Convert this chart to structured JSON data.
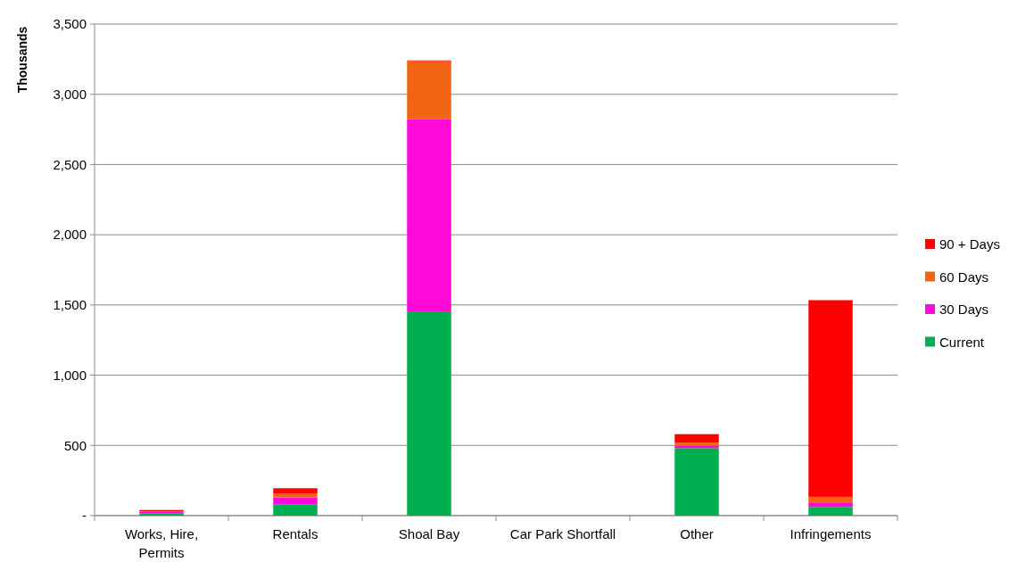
{
  "chart_data": {
    "type": "bar",
    "stacked": true,
    "ylabel": "Thousands",
    "categories": [
      "Works, Hire, Permits",
      "Rentals",
      "Shoal Bay",
      "Car Park Shortfall",
      "Other",
      "Infringements"
    ],
    "series": [
      {
        "name": "Current",
        "color": "#00b050",
        "values": [
          18,
          78,
          1455,
          0,
          481,
          62
        ]
      },
      {
        "name": "30 Days",
        "color": "#ff0ad8",
        "values": [
          8,
          51,
          1368,
          0,
          19,
          32
        ]
      },
      {
        "name": "60 Days",
        "color": "#f06414",
        "values": [
          4,
          30,
          413,
          0,
          21,
          40
        ]
      },
      {
        "name": "90 + Days",
        "color": "#ff0000",
        "values": [
          10,
          36,
          5,
          0,
          59,
          1400
        ]
      }
    ],
    "ylim": [
      0,
      3500
    ],
    "yticks": [
      {
        "value": 0,
        "label": "-"
      },
      {
        "value": 500,
        "label": "500"
      },
      {
        "value": 1000,
        "label": "1,000"
      },
      {
        "value": 1500,
        "label": "1,500"
      },
      {
        "value": 2000,
        "label": "2,000"
      },
      {
        "value": 2500,
        "label": "2,500"
      },
      {
        "value": 3000,
        "label": "3,000"
      },
      {
        "value": 3500,
        "label": "3,500"
      }
    ],
    "grid": "y",
    "legend": "right"
  }
}
